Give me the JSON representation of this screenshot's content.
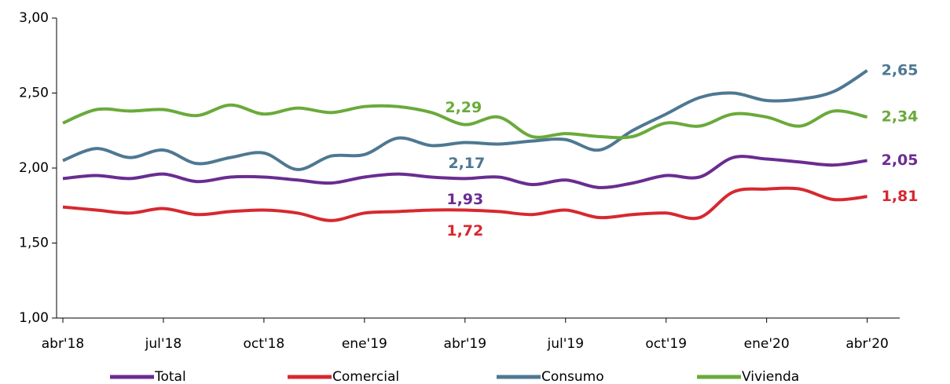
{
  "chart_data": {
    "type": "line",
    "categories": [
      "abr'18",
      null,
      null,
      "jul'18",
      null,
      null,
      "oct'18",
      null,
      null,
      "ene'19",
      null,
      null,
      "abr'19",
      null,
      null,
      "jul'19",
      null,
      null,
      "oct'19",
      null,
      null,
      "ene'20",
      null,
      null,
      "abr'20"
    ],
    "series": [
      {
        "name": "Total",
        "color": "#6a2c91",
        "values": [
          1.93,
          1.95,
          1.93,
          1.96,
          1.91,
          1.94,
          1.94,
          1.92,
          1.9,
          1.94,
          1.96,
          1.94,
          1.93,
          1.94,
          1.89,
          1.92,
          1.87,
          1.9,
          1.95,
          1.94,
          2.07,
          2.06,
          2.04,
          2.02,
          2.05
        ],
        "value_labels": [
          null,
          null,
          null,
          null,
          null,
          null,
          null,
          null,
          null,
          null,
          null,
          null,
          "1,93",
          null,
          null,
          null,
          null,
          null,
          null,
          null,
          null,
          null,
          null,
          null,
          "2,05"
        ]
      },
      {
        "name": "Comercial",
        "color": "#d7282f",
        "values": [
          1.74,
          1.72,
          1.7,
          1.73,
          1.69,
          1.71,
          1.72,
          1.7,
          1.65,
          1.7,
          1.71,
          1.72,
          1.72,
          1.71,
          1.69,
          1.72,
          1.67,
          1.69,
          1.7,
          1.67,
          1.84,
          1.86,
          1.86,
          1.79,
          1.81
        ],
        "value_labels": [
          null,
          null,
          null,
          null,
          null,
          null,
          null,
          null,
          null,
          null,
          null,
          null,
          "1,72",
          null,
          null,
          null,
          null,
          null,
          null,
          null,
          null,
          null,
          null,
          null,
          "1,81"
        ]
      },
      {
        "name": "Consumo",
        "color": "#4e7892",
        "values": [
          2.05,
          2.13,
          2.07,
          2.12,
          2.03,
          2.07,
          2.1,
          1.99,
          2.08,
          2.09,
          2.2,
          2.15,
          2.17,
          2.16,
          2.18,
          2.19,
          2.12,
          2.25,
          2.36,
          2.47,
          2.5,
          2.45,
          2.46,
          2.51,
          2.65
        ],
        "value_labels": [
          null,
          null,
          null,
          null,
          null,
          null,
          null,
          null,
          null,
          null,
          null,
          null,
          "2,17",
          null,
          null,
          null,
          null,
          null,
          null,
          null,
          null,
          null,
          null,
          null,
          "2,65"
        ]
      },
      {
        "name": "Vivienda",
        "color": "#6aaa3a",
        "values": [
          2.3,
          2.39,
          2.38,
          2.39,
          2.35,
          2.42,
          2.36,
          2.4,
          2.37,
          2.41,
          2.41,
          2.37,
          2.29,
          2.34,
          2.21,
          2.23,
          2.21,
          2.21,
          2.3,
          2.28,
          2.36,
          2.34,
          2.28,
          2.38,
          2.34
        ],
        "value_labels": [
          null,
          null,
          null,
          null,
          null,
          null,
          null,
          null,
          null,
          null,
          null,
          null,
          "2,29",
          null,
          null,
          null,
          null,
          null,
          null,
          null,
          null,
          null,
          null,
          null,
          "2,34"
        ]
      }
    ],
    "ylim": [
      1,
      3
    ],
    "yticks": [
      {
        "value": 1,
        "label": "1,00"
      },
      {
        "value": 1.5,
        "label": "1,50"
      },
      {
        "value": 2,
        "label": "2,00"
      },
      {
        "value": 2.5,
        "label": "2,50"
      },
      {
        "value": 3,
        "label": "3,00"
      }
    ],
    "legend": "bottom"
  }
}
